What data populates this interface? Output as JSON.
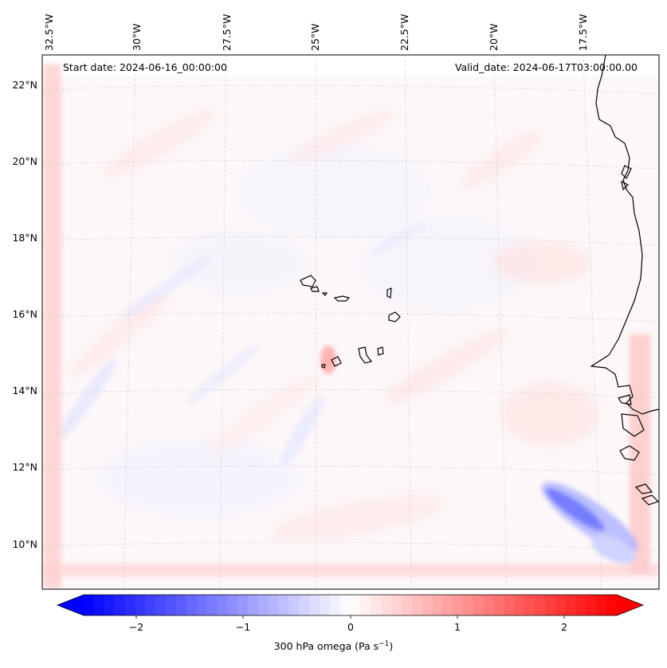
{
  "map": {
    "start_date_text": "Start date: 2024-06-16_00:00:00",
    "valid_date_text": "Valid_date: 2024-06-17T03:00:00.00",
    "lon_ticks": [
      "32.5°W",
      "30°W",
      "27.5°W",
      "25°W",
      "22.5°W",
      "20°W",
      "17.5°W"
    ],
    "lat_ticks": [
      "22°N",
      "20°N",
      "18°N",
      "16°N",
      "14°N",
      "12°N",
      "10°N"
    ],
    "gridlines": true,
    "field": "300 hPa omega",
    "colormap": "bwr"
  },
  "colorbar": {
    "label_prefix": "300 hPa omega (Pa s",
    "label_exp": "−1",
    "label_suffix": ")",
    "ticks": [
      "−2",
      "−1",
      "0",
      "1",
      "2"
    ],
    "range": [
      -2.6,
      2.6
    ],
    "extend": "both",
    "colors": {
      "min": "#0000ff",
      "mid": "#ffffff",
      "max": "#ff0000"
    }
  }
}
